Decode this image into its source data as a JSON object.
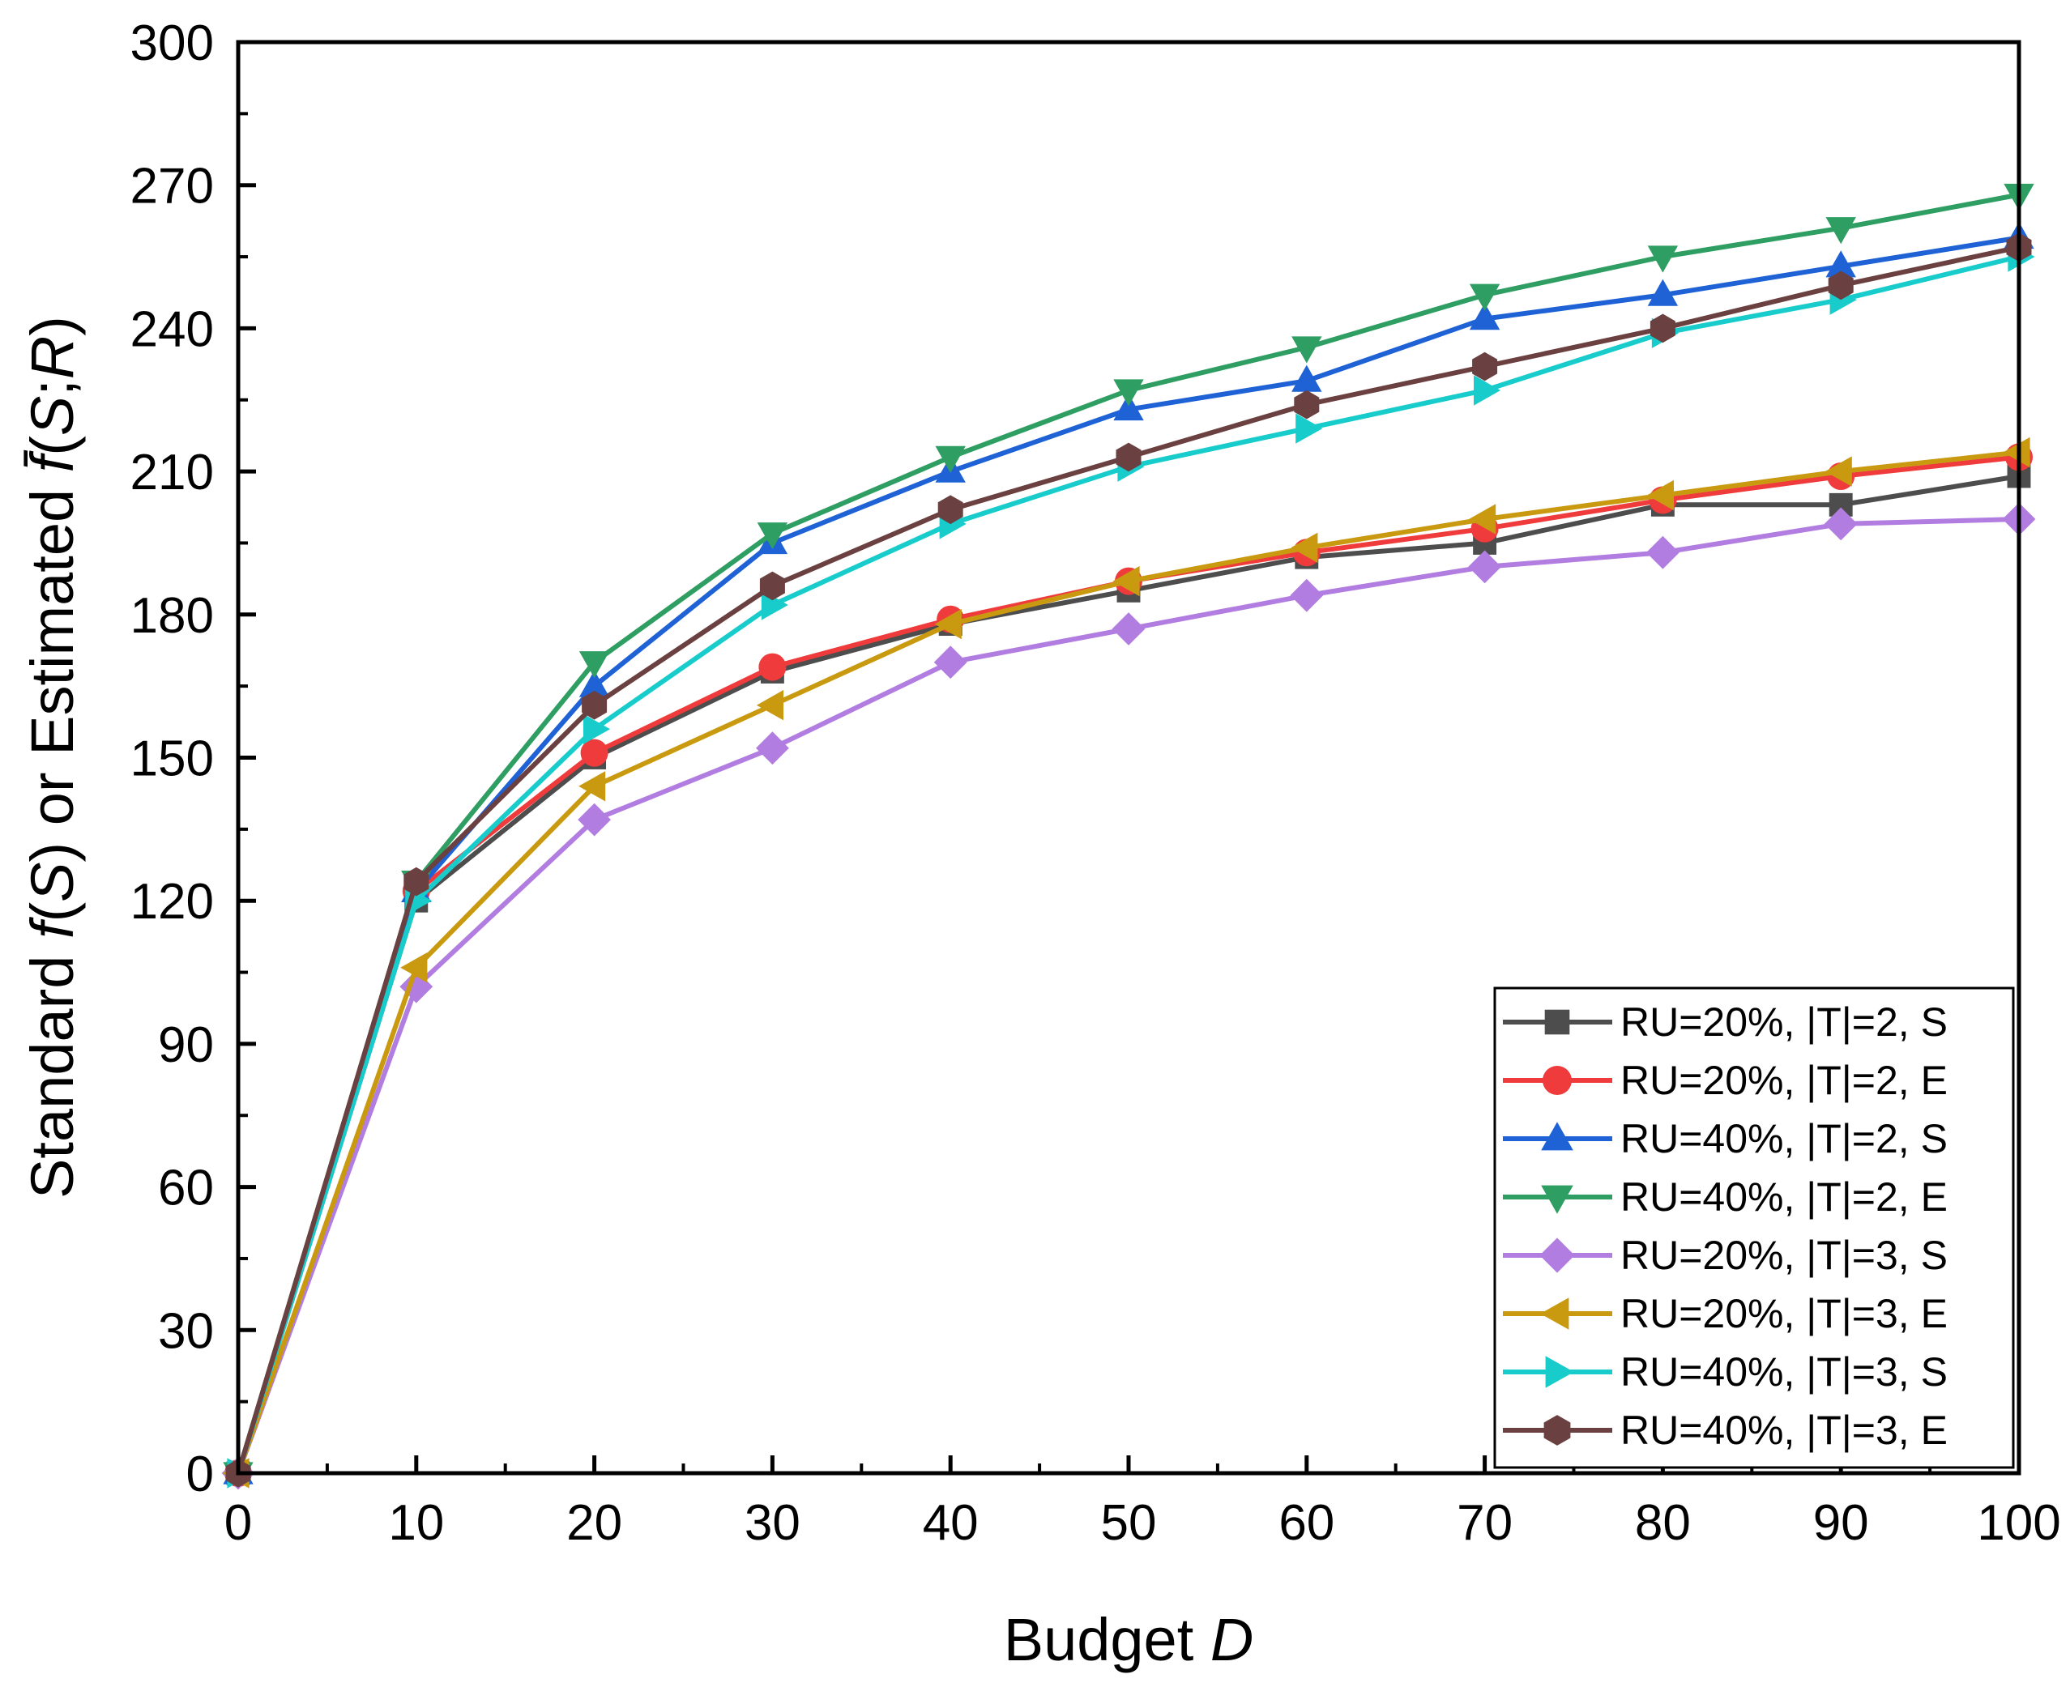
{
  "chart_data": {
    "type": "line",
    "title": "",
    "xlabel": {
      "text": "Budget ",
      "var": "D"
    },
    "ylabel": {
      "prefix": "Standard ",
      "f1": "f",
      "open1": "(",
      "s1": "S",
      "close1": ") or Estimated ",
      "fbar": "f̄",
      "open2": "(",
      "s2": "S",
      "sep": ";",
      "r": "R",
      "close2": ")"
    },
    "xlim": [
      0,
      100
    ],
    "ylim": [
      0,
      300
    ],
    "xticks": [
      "0",
      "10",
      "20",
      "30",
      "40",
      "50",
      "60",
      "70",
      "80",
      "90",
      "100"
    ],
    "yticks": [
      "0",
      "30",
      "60",
      "90",
      "120",
      "150",
      "180",
      "210",
      "240",
      "270",
      "300"
    ],
    "legend_position": "bottom-right",
    "x": [
      0,
      10,
      20,
      30,
      40,
      50,
      60,
      70,
      80,
      90,
      100
    ],
    "series": [
      {
        "name": "RU=20%, |T|=2, S",
        "color": "#4d4d4d",
        "marker": "square",
        "values": [
          0,
          120,
          150,
          168,
          178,
          185,
          192,
          195,
          203,
          203,
          209
        ]
      },
      {
        "name": "RU=20%, |T|=2, E",
        "color": "#ef3b3b",
        "marker": "circle",
        "values": [
          0,
          122,
          151,
          169,
          179,
          187,
          193,
          198,
          204,
          209,
          213
        ]
      },
      {
        "name": "RU=40%, |T|=2, S",
        "color": "#1e62d6",
        "marker": "triangle-up",
        "values": [
          0,
          122,
          165,
          195,
          210,
          223,
          229,
          242,
          247,
          253,
          259
        ]
      },
      {
        "name": "RU=40%, |T|=2, E",
        "color": "#2e9e62",
        "marker": "triangle-down",
        "values": [
          0,
          124,
          170,
          197,
          213,
          227,
          236,
          247,
          255,
          261,
          268
        ]
      },
      {
        "name": "RU=20%, |T|=3, S",
        "color": "#b27de0",
        "marker": "diamond",
        "values": [
          0,
          102,
          137,
          152,
          170,
          177,
          184,
          190,
          193,
          199,
          200
        ]
      },
      {
        "name": "RU=20%, |T|=3, E",
        "color": "#c99a10",
        "marker": "triangle-left",
        "values": [
          0,
          106,
          144,
          161,
          178,
          187,
          194,
          200,
          205,
          210,
          214
        ]
      },
      {
        "name": "RU=40%, |T|=3, S",
        "color": "#19cccc",
        "marker": "triangle-right",
        "values": [
          0,
          120,
          156,
          182,
          199,
          211,
          219,
          227,
          239,
          246,
          255
        ]
      },
      {
        "name": "RU=40%, |T|=3, E",
        "color": "#6b4040",
        "marker": "hexagon",
        "values": [
          0,
          124,
          161,
          186,
          202,
          213,
          224,
          232,
          240,
          249,
          257
        ]
      }
    ]
  }
}
